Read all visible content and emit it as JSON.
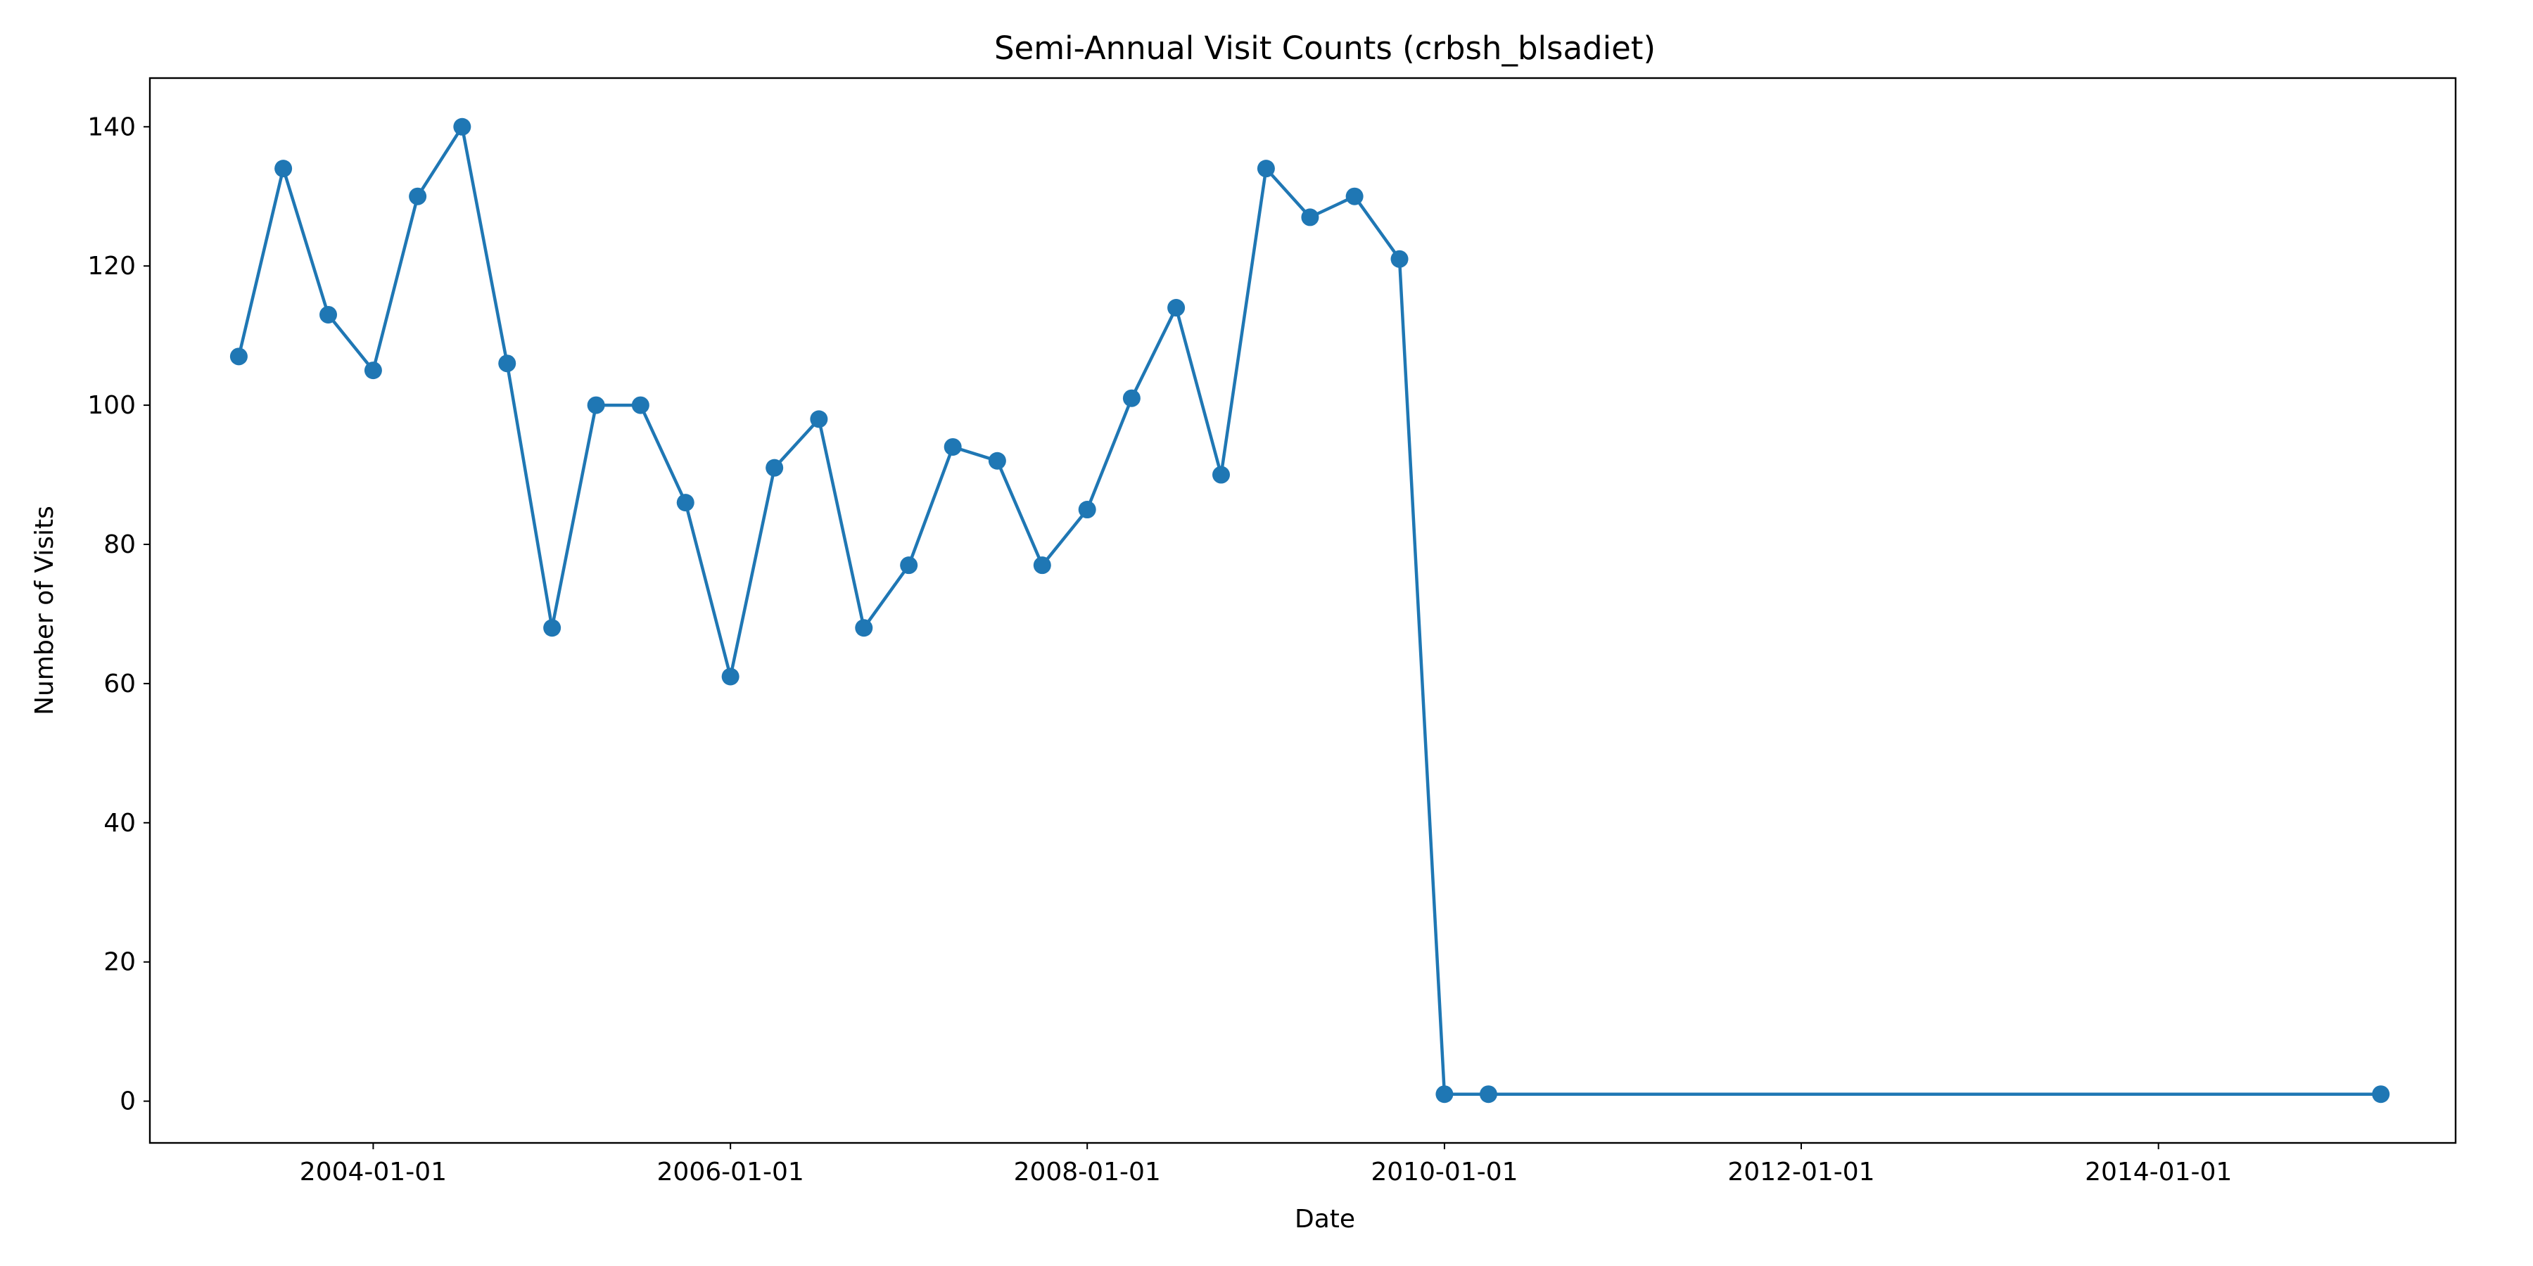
{
  "chart_data": {
    "type": "line",
    "title": "Semi-Annual Visit Counts (crbsh_blsadiet)",
    "xlabel": "Date",
    "ylabel": "Number of Visits",
    "x_scale": "date",
    "xlim": [
      "2002-10-01",
      "2015-09-01"
    ],
    "ylim": [
      -6,
      147
    ],
    "x_ticks": [
      "2004-01-01",
      "2006-01-01",
      "2008-01-01",
      "2010-01-01",
      "2012-01-01",
      "2014-01-01"
    ],
    "y_ticks": [
      0,
      20,
      40,
      60,
      80,
      100,
      120,
      140
    ],
    "grid": false,
    "legend": "none",
    "series": [
      {
        "color": "#1f77b4",
        "marker": "circle",
        "x": [
          "2003-04-01",
          "2003-07-01",
          "2003-10-01",
          "2004-01-01",
          "2004-04-01",
          "2004-07-01",
          "2004-10-01",
          "2005-01-01",
          "2005-04-01",
          "2005-07-01",
          "2005-10-01",
          "2006-01-01",
          "2006-04-01",
          "2006-07-01",
          "2006-10-01",
          "2007-01-01",
          "2007-04-01",
          "2007-07-01",
          "2007-10-01",
          "2008-01-01",
          "2008-04-01",
          "2008-07-01",
          "2008-10-01",
          "2009-01-01",
          "2009-04-01",
          "2009-07-01",
          "2009-10-01",
          "2010-01-01",
          "2010-04-01",
          "2015-04-01"
        ],
        "y": [
          107,
          134,
          113,
          105,
          130,
          140,
          106,
          68,
          100,
          100,
          86,
          61,
          91,
          98,
          68,
          77,
          94,
          92,
          77,
          85,
          101,
          114,
          90,
          134,
          127,
          130,
          121,
          1,
          1,
          1
        ]
      }
    ]
  }
}
